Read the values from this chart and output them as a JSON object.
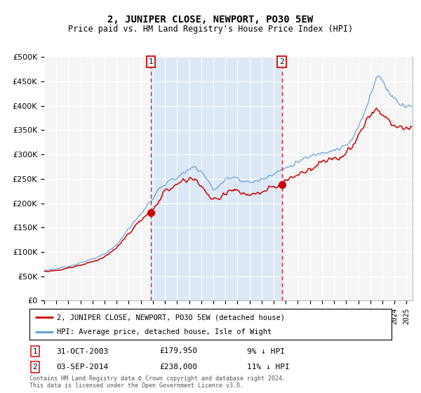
{
  "title": "2, JUNIPER CLOSE, NEWPORT, PO30 5EW",
  "subtitle": "Price paid vs. HM Land Registry's House Price Index (HPI)",
  "hpi_label": "HPI: Average price, detached house, Isle of Wight",
  "property_label": "2, JUNIPER CLOSE, NEWPORT, PO30 5EW (detached house)",
  "sale1_date": "31-OCT-2003",
  "sale1_price": 179950,
  "sale1_label": "9% ↓ HPI",
  "sale2_date": "03-SEP-2014",
  "sale2_price": 238000,
  "sale2_label": "11% ↓ HPI",
  "sale1_year": 2003.83,
  "sale2_year": 2014.67,
  "hpi_color": "#5b9bd5",
  "property_color": "#cc0000",
  "plot_bg": "#f5f5f5",
  "grid_color": "#ffffff",
  "fill_color": "#dce8f5",
  "footer": "Contains HM Land Registry data © Crown copyright and database right 2024.\nThis data is licensed under the Open Government Licence v3.0.",
  "xmin": 1995,
  "xmax": 2025.5,
  "ymin": 0,
  "ymax": 500000
}
